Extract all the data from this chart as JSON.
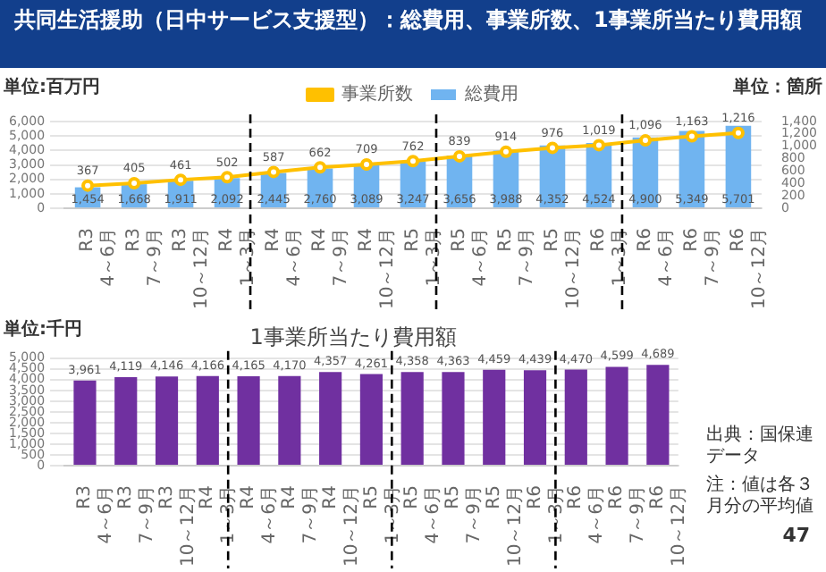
{
  "chart_data": [
    {
      "type": "bar",
      "title": "共同生活援助（日中サービス支援型）：総費用、事業所数、1事業所当たり費用額",
      "ylabel": "単位:百万円",
      "y2label": "単位：箇所",
      "categories": [
        "R3\n4～6月",
        "R3\n7～9月",
        "R3\n10～12月",
        "R4\n1～3月",
        "R4\n4～6月",
        "R4\n7～9月",
        "R4\n10～12月",
        "R5\n1～3月",
        "R5\n4～6月",
        "R5\n7～9月",
        "R5\n10～12月",
        "R6\n1～3月",
        "R6\n4～6月",
        "R6\n7～9月",
        "R6\n10～12月"
      ],
      "series": [
        {
          "name": "総費用",
          "type": "bar",
          "color": "#70b4f0",
          "values": [
            1454,
            1668,
            1911,
            2092,
            2445,
            2760,
            3089,
            3247,
            3656,
            3988,
            4352,
            4524,
            4900,
            5349,
            5701
          ],
          "value_labels": [
            "1,454",
            "1,668",
            "1,911",
            "2,092",
            "2,445",
            "2,760",
            "3,089",
            "3,247",
            "3,656",
            "3,988",
            "4,352",
            "4,524",
            "4,900",
            "5,349",
            "5,701"
          ]
        },
        {
          "name": "事業所数",
          "type": "line",
          "axis": "y2",
          "color": "#ffc000",
          "values": [
            367,
            405,
            461,
            502,
            587,
            662,
            709,
            762,
            839,
            914,
            976,
            1019,
            1096,
            1163,
            1216
          ],
          "value_labels": [
            "367",
            "405",
            "461",
            "502",
            "587",
            "662",
            "709",
            "762",
            "839",
            "914",
            "976",
            "1,019",
            "1,096",
            "1,163",
            "1,216"
          ]
        }
      ],
      "ylim": [
        0,
        6000
      ],
      "yticks": [
        {
          "value": 0,
          "label": "0"
        },
        {
          "value": 1000,
          "label": "1,000"
        },
        {
          "value": 2000,
          "label": "2,000"
        },
        {
          "value": 3000,
          "label": "3,000"
        },
        {
          "value": 4000,
          "label": "4,000"
        },
        {
          "value": 5000,
          "label": "5,000"
        },
        {
          "value": 6000,
          "label": "6,000"
        }
      ],
      "y2lim": [
        0,
        1400
      ],
      "y2ticks": [
        {
          "value": 0,
          "label": "0"
        },
        {
          "value": 200,
          "label": "200"
        },
        {
          "value": 400,
          "label": "400"
        },
        {
          "value": 600,
          "label": "600"
        },
        {
          "value": 800,
          "label": "800"
        },
        {
          "value": 1000,
          "label": "1,000"
        },
        {
          "value": 1200,
          "label": "1,200"
        },
        {
          "value": 1400,
          "label": "1,400"
        }
      ],
      "grid": "y",
      "legend": "top",
      "marker": "circle",
      "line_style": "solid"
    },
    {
      "type": "bar",
      "title": "1事業所当たり費用額",
      "ylabel": "単位:千円",
      "categories": [
        "R3\n4～6月",
        "R3\n7～9月",
        "R3\n10～12月",
        "R4\n1～3月",
        "R4\n4～6月",
        "R4\n7～9月",
        "R4\n10～12月",
        "R5\n1～3月",
        "R5\n4～6月",
        "R5\n7～9月",
        "R5\n10～12月",
        "R6\n1～3月",
        "R6\n4～6月",
        "R6\n7～9月",
        "R6\n10～12月"
      ],
      "values": [
        3961,
        4119,
        4146,
        4166,
        4165,
        4170,
        4357,
        4261,
        4358,
        4363,
        4459,
        4439,
        4470,
        4599,
        4689
      ],
      "value_labels": [
        "3,961",
        "4,119",
        "4,146",
        "4,166",
        "4,165",
        "4,170",
        "4,357",
        "4,261",
        "4,358",
        "4,363",
        "4,459",
        "4,439",
        "4,470",
        "4,599",
        "4,689"
      ],
      "color": "#7030a0",
      "ylim": [
        0,
        5000
      ],
      "yticks": [
        {
          "value": 0,
          "label": "0"
        },
        {
          "value": 500,
          "label": "500"
        },
        {
          "value": 1000,
          "label": "1,000"
        },
        {
          "value": 1500,
          "label": "1,500"
        },
        {
          "value": 2000,
          "label": "2,000"
        },
        {
          "value": 2500,
          "label": "2,500"
        },
        {
          "value": 3000,
          "label": "3,000"
        },
        {
          "value": 3500,
          "label": "3,500"
        },
        {
          "value": 4000,
          "label": "4,000"
        },
        {
          "value": 4500,
          "label": "4,500"
        },
        {
          "value": 5000,
          "label": "5,000"
        }
      ],
      "grid": "y",
      "annotations": [
        "出典：国保連データ",
        "注：値は各３月分の平均値",
        "47"
      ]
    }
  ]
}
